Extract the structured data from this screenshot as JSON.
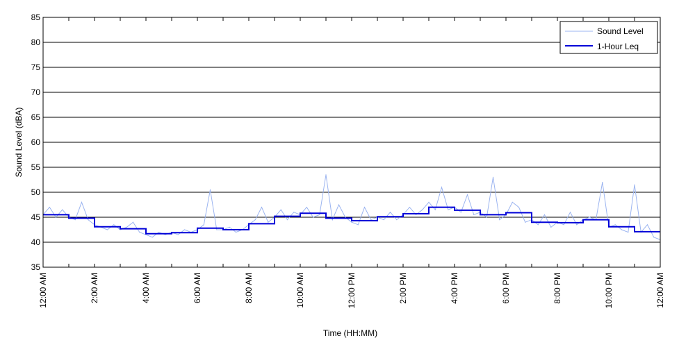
{
  "chart_data": {
    "type": "line",
    "xlabel": "Time (HH:MM)",
    "ylabel": "Sound Level (dBA)",
    "ylim": [
      35,
      85
    ],
    "yticks": [
      35,
      40,
      45,
      50,
      55,
      60,
      65,
      70,
      75,
      80,
      85
    ],
    "xlim_hours": [
      0,
      24
    ],
    "xtick_labels": [
      "12:00 AM",
      "2:00 AM",
      "4:00 AM",
      "6:00 AM",
      "8:00 AM",
      "10:00 AM",
      "12:00 PM",
      "2:00 PM",
      "4:00 PM",
      "6:00 PM",
      "8:00 PM",
      "10:00 PM",
      "12:00 AM"
    ],
    "grid": "horizontal",
    "legend_position": "top-right",
    "series": [
      {
        "name": "Sound Level",
        "style": "thin-line",
        "color": "#9bb4f0",
        "x_hours": [
          0,
          0.25,
          0.5,
          0.75,
          1,
          1.25,
          1.5,
          1.75,
          2,
          2.25,
          2.5,
          2.75,
          3,
          3.25,
          3.5,
          3.75,
          4,
          4.25,
          4.5,
          4.75,
          5,
          5.25,
          5.5,
          5.75,
          6,
          6.25,
          6.5,
          6.75,
          7,
          7.25,
          7.5,
          7.75,
          8,
          8.25,
          8.5,
          8.75,
          9,
          9.25,
          9.5,
          9.75,
          10,
          10.25,
          10.5,
          10.75,
          11,
          11.25,
          11.5,
          11.75,
          12,
          12.25,
          12.5,
          12.75,
          13,
          13.25,
          13.5,
          13.75,
          14,
          14.25,
          14.5,
          14.75,
          15,
          15.25,
          15.5,
          15.75,
          16,
          16.25,
          16.5,
          16.75,
          17,
          17.25,
          17.5,
          17.75,
          18,
          18.25,
          18.5,
          18.75,
          19,
          19.25,
          19.5,
          19.75,
          20,
          20.25,
          20.5,
          20.75,
          21,
          21.25,
          21.5,
          21.75,
          22,
          22.25,
          22.5,
          22.75,
          23,
          23.25,
          23.5,
          23.75,
          24
        ],
        "values": [
          45.5,
          47,
          45,
          46.5,
          45,
          44.5,
          48,
          44.5,
          43.5,
          43,
          42.5,
          43.5,
          42.5,
          43,
          44,
          42,
          41.5,
          41,
          42,
          41.5,
          42,
          41.5,
          42.5,
          42,
          42.5,
          43.5,
          50.5,
          42.5,
          42.5,
          43,
          42,
          42.5,
          43.5,
          44.5,
          47,
          44,
          45,
          46.5,
          44.5,
          46,
          45.5,
          47,
          45,
          45.5,
          53.5,
          44.5,
          47.5,
          45,
          44,
          43.5,
          47,
          44.5,
          45,
          44.5,
          46,
          44.5,
          45.5,
          47,
          45.5,
          46.5,
          48,
          46.5,
          51,
          46.5,
          47,
          46,
          49.5,
          45.5,
          46,
          45,
          53,
          44.5,
          45.5,
          48,
          47,
          44,
          44.5,
          43.5,
          45.5,
          43,
          44,
          43.5,
          46,
          43.5,
          44.5,
          45,
          44.5,
          52,
          43,
          43.5,
          42.5,
          42,
          51.5,
          42,
          43.5,
          41,
          40.5
        ]
      },
      {
        "name": "1-Hour Leq",
        "style": "step",
        "color": "#0000d8",
        "hour_start": [
          0,
          1,
          2,
          3,
          4,
          5,
          6,
          7,
          8,
          9,
          10,
          11,
          12,
          13,
          14,
          15,
          16,
          17,
          18,
          19,
          20,
          21,
          22,
          23
        ],
        "values": [
          45.5,
          44.8,
          43.1,
          42.7,
          41.7,
          41.9,
          42.8,
          42.5,
          43.7,
          45.2,
          45.8,
          44.8,
          44.3,
          45.1,
          45.7,
          47.0,
          46.4,
          45.5,
          45.9,
          44.0,
          43.9,
          44.5,
          43.1,
          42.1
        ]
      }
    ]
  }
}
